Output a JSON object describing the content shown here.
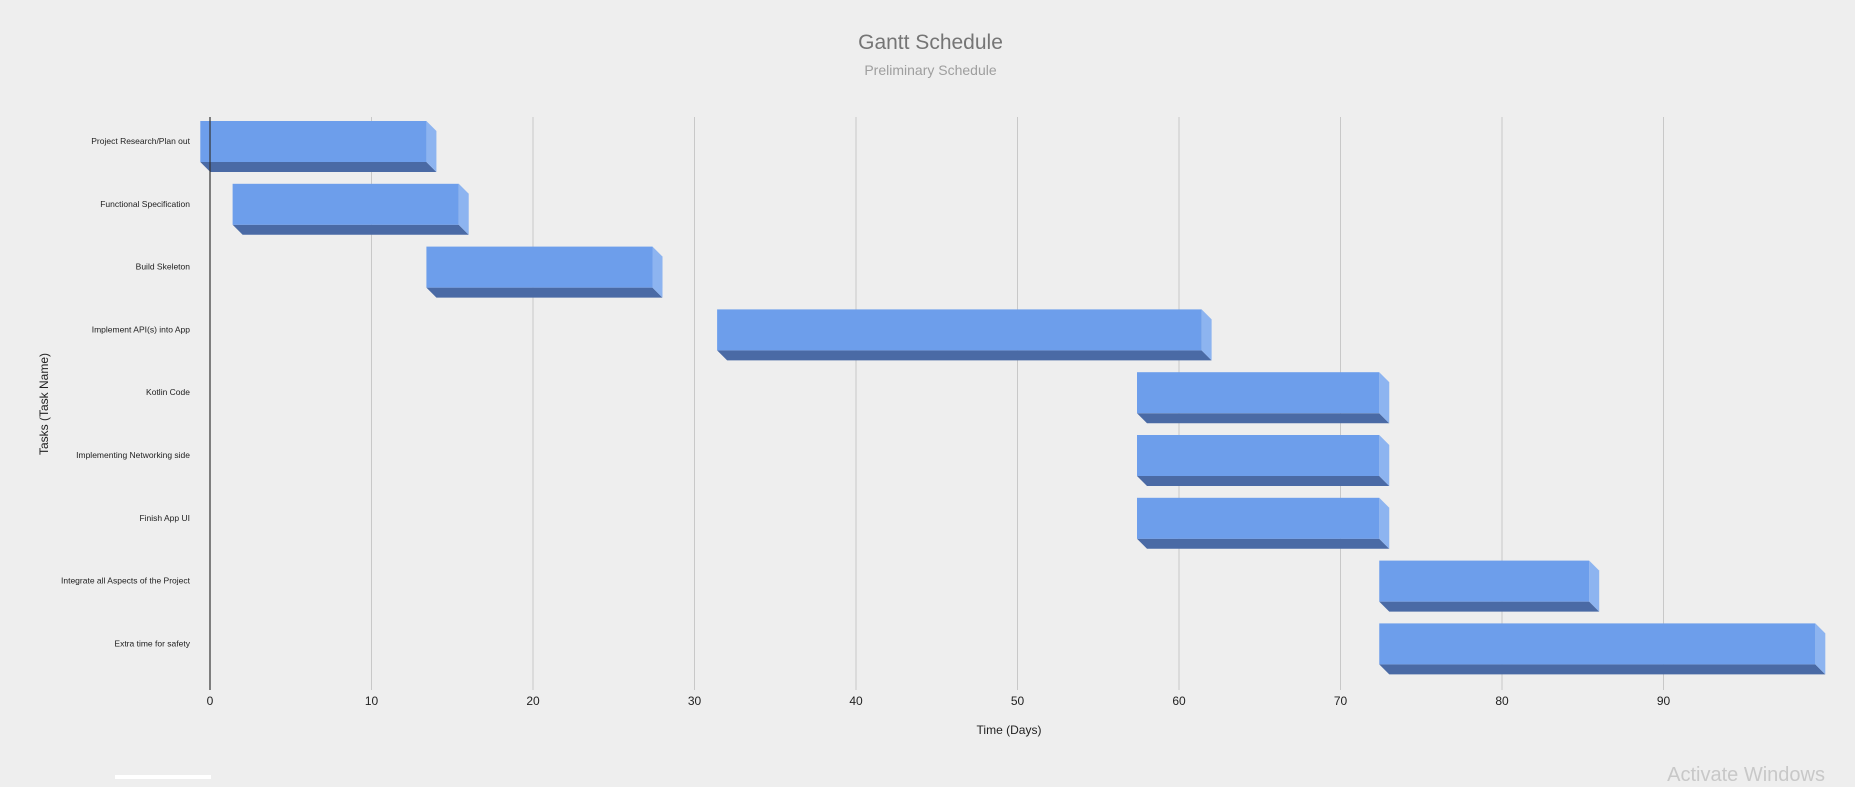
{
  "chart_data": {
    "type": "bar",
    "orientation": "horizontal",
    "style": "3d-gantt",
    "title": "Gantt Schedule",
    "subtitle": "Preliminary Schedule",
    "xlabel": "Time (Days)",
    "ylabel": "Tasks (Task Name)",
    "xlim": [
      0,
      100
    ],
    "x_ticks": [
      0,
      10,
      20,
      30,
      40,
      50,
      60,
      70,
      80,
      90
    ],
    "grid": true,
    "legend": "none",
    "colors": {
      "bar_face": "#6d9eeb",
      "bar_bottom": "#4a6aa5",
      "bar_side": "#8db4f0",
      "gridline": "#c8c8c8",
      "axis": "#333333"
    },
    "categories": [
      "Project Research/Plan out",
      "Functional Specification",
      "Build Skeleton",
      "Implement API(s) into App",
      "Kotlin Code",
      "Implementing Networking side",
      "Finish App UI",
      "Integrate all Aspects of the Project",
      "Extra time for safety"
    ],
    "series": [
      {
        "start": [
          -0.6,
          1.4,
          13.4,
          31.4,
          57.4,
          57.4,
          57.4,
          72.4,
          72.4
        ],
        "end": [
          13.4,
          15.4,
          27.4,
          61.4,
          72.4,
          72.4,
          72.4,
          85.4,
          99.4
        ]
      }
    ]
  },
  "watermark": "Activate Windows"
}
